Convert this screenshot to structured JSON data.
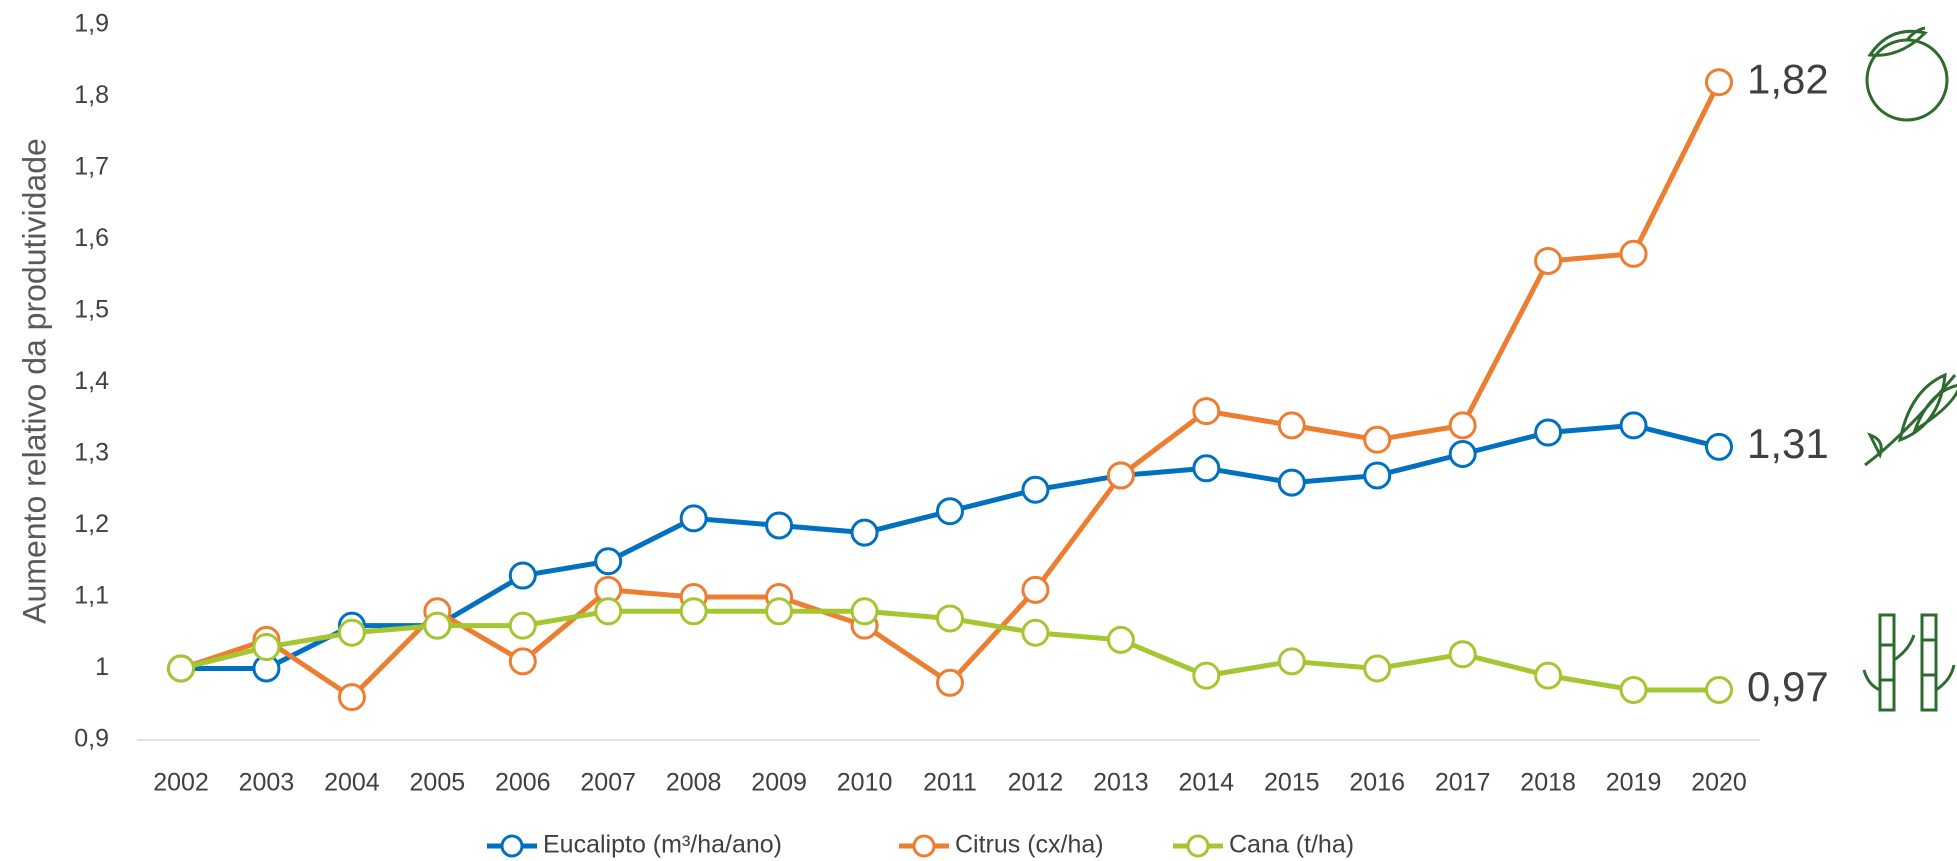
{
  "chart_data": {
    "type": "line",
    "y_label": "Aumento relativo da produtividade",
    "categories": [
      "2002",
      "2003",
      "2004",
      "2005",
      "2006",
      "2007",
      "2008",
      "2009",
      "2010",
      "2011",
      "2012",
      "2013",
      "2014",
      "2015",
      "2016",
      "2017",
      "2018",
      "2019",
      "2020"
    ],
    "series": [
      {
        "name": "Eucalipto (m³/ha/ano)",
        "color": "#0070c0",
        "values": [
          1.0,
          1.0,
          1.06,
          1.06,
          1.13,
          1.15,
          1.21,
          1.2,
          1.19,
          1.22,
          1.25,
          1.27,
          1.28,
          1.26,
          1.27,
          1.3,
          1.33,
          1.34,
          1.31
        ],
        "value_labels": [
          null,
          null,
          null,
          null,
          null,
          null,
          null,
          null,
          null,
          null,
          null,
          null,
          null,
          null,
          null,
          null,
          null,
          null,
          "1,31"
        ]
      },
      {
        "name": "Citrus (cx/ha)",
        "color": "#ed7d31",
        "values": [
          1.0,
          1.04,
          0.96,
          1.08,
          1.01,
          1.11,
          1.1,
          1.1,
          1.06,
          0.98,
          1.11,
          1.27,
          1.36,
          1.34,
          1.32,
          1.34,
          1.57,
          1.58,
          1.82
        ],
        "value_labels": [
          null,
          null,
          null,
          null,
          null,
          null,
          null,
          null,
          null,
          null,
          null,
          null,
          null,
          null,
          null,
          null,
          null,
          null,
          "1,82"
        ]
      },
      {
        "name": "Cana (t/ha)",
        "color": "#a5c531",
        "values": [
          1.0,
          1.03,
          1.05,
          1.06,
          1.06,
          1.08,
          1.08,
          1.08,
          1.08,
          1.07,
          1.05,
          1.04,
          0.99,
          1.01,
          1.0,
          1.02,
          0.99,
          0.97,
          0.97
        ],
        "value_labels": [
          null,
          null,
          null,
          null,
          null,
          null,
          null,
          null,
          null,
          null,
          null,
          null,
          null,
          null,
          null,
          null,
          null,
          null,
          "0,97"
        ]
      }
    ],
    "ylim": [
      0.9,
      1.9
    ],
    "yticks": [
      {
        "value": 0.9,
        "label": "0,9"
      },
      1,
      {
        "value": 1.1,
        "label": "1,1"
      },
      {
        "value": 1.2,
        "label": "1,2"
      },
      {
        "value": 1.3,
        "label": "1,3"
      },
      {
        "value": 1.4,
        "label": "1,4"
      },
      {
        "value": 1.5,
        "label": "1,5"
      },
      {
        "value": 1.6,
        "label": "1,6"
      },
      {
        "value": 1.7,
        "label": "1,7"
      },
      {
        "value": 1.8,
        "label": "1,8"
      },
      {
        "value": 1.9,
        "label": "1,9"
      }
    ],
    "grid": false,
    "legend": "bottom"
  }
}
